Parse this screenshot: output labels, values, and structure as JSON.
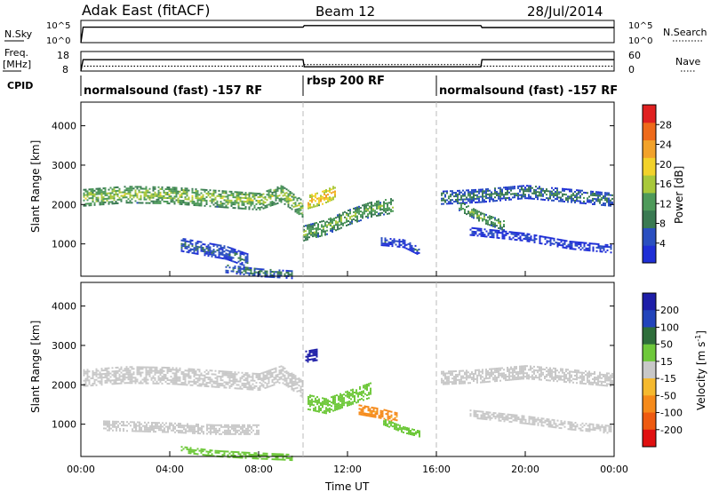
{
  "header": {
    "title": "Adak East (fitACF)",
    "beam": "Beam 12",
    "date": "28/Jul/2014"
  },
  "noise_panel": {
    "left_label": "N.Sky",
    "right_label": "N.Search",
    "left_ticks": [
      "10^5",
      "10^0"
    ],
    "right_ticks": [
      "10^5",
      "10^0"
    ]
  },
  "freq_panel": {
    "left_label_1": "Freq.",
    "left_label_2": "[MHz]",
    "right_label": "Nave",
    "left_ticks": [
      "18",
      "8"
    ],
    "right_ticks": [
      "60",
      "0"
    ]
  },
  "cpid_panel": {
    "label": "CPID",
    "segments": [
      {
        "label": "normalsound (fast) -157 RF",
        "start": 0,
        "end": 10
      },
      {
        "label": "rbsp 200 RF",
        "start": 10,
        "end": 16
      },
      {
        "label": "normalsound (fast) -157 RF",
        "start": 16,
        "end": 24
      }
    ]
  },
  "colors": {
    "power": [
      "#1f2fd6",
      "#2a4fc0",
      "#3a7a52",
      "#4e9a5a",
      "#a8c83a",
      "#f2d22a",
      "#f2a22a",
      "#ee6a1a",
      "#e02020"
    ],
    "velocity_legend": [
      "#1e1ea8",
      "#2244bb",
      "#2e6e3a",
      "#6ec83a",
      "#c8c8c8",
      "#f5b92e",
      "#f58a1a",
      "#ee5a10",
      "#e01010"
    ]
  },
  "chart_data": [
    {
      "type": "line",
      "title": "N.Sky / N.Search",
      "x_label": "",
      "x_range_hours": [
        0,
        24
      ],
      "series": [
        {
          "name": "N.Sky",
          "x": [
            0,
            0.1,
            10,
            10.05,
            18,
            18.05,
            24
          ],
          "y": [
            1,
            3000,
            3000,
            7000,
            7000,
            2500,
            2500
          ]
        }
      ],
      "y_scale": "log",
      "ylim": [
        1,
        100000
      ]
    },
    {
      "type": "line",
      "title": "Freq. / Nave",
      "x_range_hours": [
        0,
        24
      ],
      "series": [
        {
          "name": "Freq.",
          "x": [
            0,
            0.1,
            10,
            10.05,
            18,
            18.05,
            24
          ],
          "y": [
            8,
            13.8,
            13.8,
            10.2,
            10.2,
            13.8,
            13.8
          ]
        },
        {
          "name": "Nave",
          "x": [
            0,
            10,
            10.05,
            18,
            18.05,
            24
          ],
          "y": [
            15,
            15,
            20,
            20,
            15,
            15
          ],
          "dotted": true
        }
      ],
      "ylim": [
        8,
        18
      ]
    },
    {
      "type": "heatmap",
      "title": "Power [dB]",
      "ylabel": "Slant Range [km]",
      "xlim": [
        0,
        24
      ],
      "ylim": [
        180,
        4600
      ],
      "y_ticks": [
        1000,
        2000,
        3000,
        4000
      ],
      "colorbar_ticks": [
        4,
        8,
        12,
        16,
        20,
        24,
        28
      ],
      "colorbar_range": [
        0,
        32
      ],
      "bands": [
        {
          "x": [
            0.1,
            2,
            4,
            6,
            8,
            9,
            10
          ],
          "y": [
            2200,
            2280,
            2260,
            2180,
            2100,
            2300,
            1900
          ],
          "width": 420,
          "value": 16
        },
        {
          "x": [
            10,
            11,
            12,
            13,
            14
          ],
          "y": [
            1300,
            1450,
            1700,
            1900,
            2000
          ],
          "width": 380,
          "value": 14
        },
        {
          "x": [
            10.2,
            10.8,
            11.4
          ],
          "y": [
            2100,
            2200,
            2350
          ],
          "width": 350,
          "value": 22
        },
        {
          "x": [
            13.5,
            14.5,
            15.2
          ],
          "y": [
            1100,
            1050,
            850
          ],
          "width": 220,
          "value": 6
        },
        {
          "x": [
            4.5,
            5.5,
            6.5,
            7.5
          ],
          "y": [
            1000,
            900,
            800,
            600
          ],
          "width": 320,
          "value": 8
        },
        {
          "x": [
            6.5,
            8,
            9.5
          ],
          "y": [
            400,
            300,
            250
          ],
          "width": 200,
          "value": 10
        },
        {
          "x": [
            16.2,
            18,
            20,
            22,
            23.9
          ],
          "y": [
            2200,
            2250,
            2350,
            2250,
            2150
          ],
          "width": 330,
          "value": 10
        },
        {
          "x": [
            17,
            18,
            19
          ],
          "y": [
            2000,
            1700,
            1500
          ],
          "width": 250,
          "value": 14
        },
        {
          "x": [
            17.5,
            20,
            22,
            23.9
          ],
          "y": [
            1350,
            1200,
            1000,
            900
          ],
          "width": 200,
          "value": 5
        }
      ]
    },
    {
      "type": "heatmap",
      "title": "Velocity [m s^-1]",
      "ylabel": "Slant Range [km]",
      "xlabel": "Time UT",
      "xlim": [
        0,
        24
      ],
      "ylim": [
        180,
        4600
      ],
      "x_ticks": [
        "00:00",
        "04:00",
        "08:00",
        "12:00",
        "16:00",
        "20:00",
        "00:00"
      ],
      "y_ticks": [
        1000,
        2000,
        3000,
        4000
      ],
      "colorbar_labels": [
        "200",
        "100",
        "50",
        "15",
        "-15",
        "-50",
        "-100",
        "-200"
      ],
      "bands": [
        {
          "x": [
            0.1,
            2,
            4,
            6,
            8,
            9,
            10
          ],
          "y": [
            2200,
            2280,
            2260,
            2180,
            2100,
            2300,
            1900
          ],
          "width": 420,
          "value": 0
        },
        {
          "x": [
            10.2,
            11,
            12,
            13
          ],
          "y": [
            1600,
            1500,
            1700,
            1900
          ],
          "width": 400,
          "value": 60
        },
        {
          "x": [
            10.1,
            10.6
          ],
          "y": [
            2750,
            2800
          ],
          "width": 300,
          "value": 200
        },
        {
          "x": [
            12.5,
            13.5,
            14.2
          ],
          "y": [
            1400,
            1300,
            1200
          ],
          "width": 250,
          "value": -50
        },
        {
          "x": [
            13.6,
            14.5,
            15.2
          ],
          "y": [
            1100,
            900,
            800
          ],
          "width": 180,
          "value": 60
        },
        {
          "x": [
            4.5,
            6,
            7.5,
            9.5
          ],
          "y": [
            400,
            300,
            250,
            200
          ],
          "width": 180,
          "value": 50
        },
        {
          "x": [
            1,
            4,
            6,
            8
          ],
          "y": [
            1000,
            950,
            900,
            900
          ],
          "width": 260,
          "value": 0
        },
        {
          "x": [
            16.2,
            18,
            20,
            22,
            23.9
          ],
          "y": [
            2200,
            2250,
            2350,
            2250,
            2150
          ],
          "width": 330,
          "value": 0
        },
        {
          "x": [
            17.5,
            20,
            22,
            23.9
          ],
          "y": [
            1300,
            1150,
            1000,
            900
          ],
          "width": 220,
          "value": 0
        }
      ]
    }
  ],
  "axes": {
    "y_label": "Slant Range [km]",
    "x_label": "Time UT",
    "x_ticks": [
      "00:00",
      "04:00",
      "08:00",
      "12:00",
      "16:00",
      "20:00",
      "00:00"
    ],
    "y_ticks": [
      "1000",
      "2000",
      "3000",
      "4000"
    ],
    "power_label": "Power [dB]",
    "power_ticks": [
      "4",
      "8",
      "12",
      "16",
      "20",
      "24",
      "28"
    ],
    "velocity_label": "Velocity [m s",
    "velocity_sup": "-1",
    "velocity_close": "]",
    "velocity_ticks": [
      "200",
      "100",
      "50",
      "15",
      "-15",
      "-50",
      "-100",
      "-200"
    ]
  }
}
